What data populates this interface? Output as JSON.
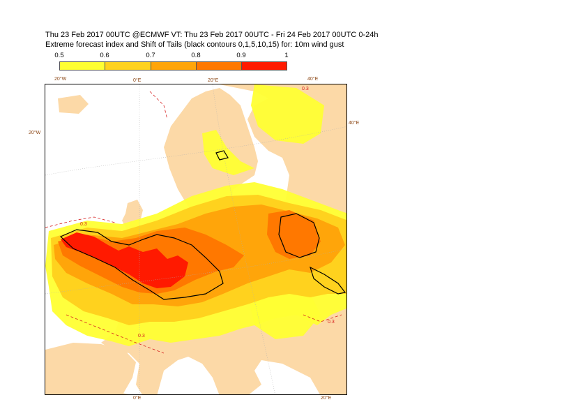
{
  "header": {
    "line1": "Thu 23 Feb 2017 00UTC @ECMWF VT: Thu 23 Feb 2017 00UTC - Fri 24 Feb 2017 00UTC  0-24h",
    "line2": "Extreme forecast index and Shift of Tails (black contours 0,1,5,10,15) for: 10m wind gust"
  },
  "colorbar": {
    "ticks": [
      "0.5",
      "0.6",
      "0.7",
      "0.8",
      "0.9",
      "1"
    ],
    "colors": [
      "#ffff33",
      "#ffd21e",
      "#ffa50a",
      "#ff7800",
      "#ff1a00"
    ]
  },
  "map": {
    "colors": {
      "land": "#fcd9a7",
      "sea": "#ffffff",
      "efi_05": "#ffff33",
      "efi_06": "#ffd21e",
      "efi_07": "#ffa50a",
      "efi_08": "#ff7800",
      "efi_09": "#ff1a00",
      "sot_contour": "#000000",
      "negative_contour": "#d62020",
      "border": "#c8c8c8"
    },
    "contour_labels": [
      "0.3",
      "0.3",
      "0.3",
      "0.3"
    ],
    "geo_labels": {
      "top_20w": "20°W",
      "top_0e": "0°E",
      "top_20e": "20°E",
      "top_40e": "40°E",
      "left_20w": "20°W",
      "right_40e": "40°E",
      "bottom_0e": "0°E",
      "bottom_20e": "20°E"
    }
  }
}
